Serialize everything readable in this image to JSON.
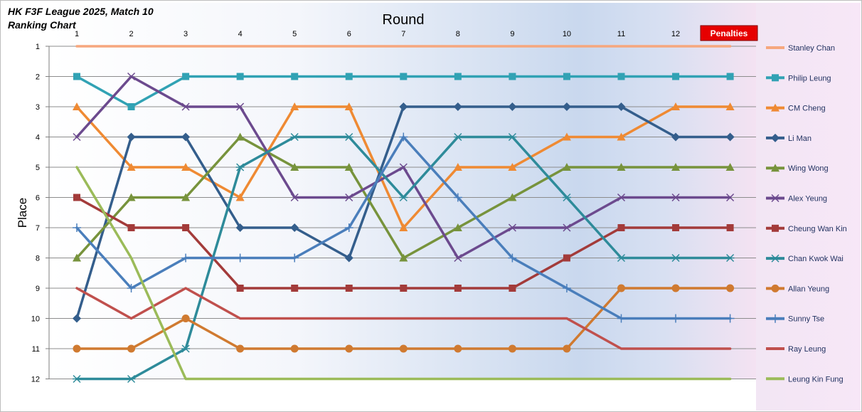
{
  "chart_data": {
    "type": "line",
    "title": "HK F3F League 2025, Match 10",
    "subtitle": "Ranking Chart",
    "xlabel": "Round",
    "ylabel": "Place",
    "x": [
      1,
      2,
      3,
      4,
      5,
      6,
      7,
      8,
      9,
      10,
      11,
      12,
      13
    ],
    "x_tick_labels": [
      "1",
      "2",
      "3",
      "4",
      "5",
      "6",
      "7",
      "8",
      "9",
      "10",
      "11",
      "12"
    ],
    "final_column_label": "Penalties",
    "y_tick_labels": [
      "1",
      "2",
      "3",
      "4",
      "5",
      "6",
      "7",
      "8",
      "9",
      "10",
      "11",
      "12"
    ],
    "ylim": [
      1,
      12
    ],
    "y_reversed": true,
    "grid": "horizontal",
    "legend_position": "right",
    "series": [
      {
        "name": "Stanley Chan",
        "color": "#f6a77e",
        "marker": "none",
        "values": [
          1,
          1,
          1,
          1,
          1,
          1,
          1,
          1,
          1,
          1,
          1,
          1,
          1
        ]
      },
      {
        "name": "Philip Leung",
        "color": "#31a2b4",
        "marker": "square",
        "values": [
          2,
          3,
          2,
          2,
          2,
          2,
          2,
          2,
          2,
          2,
          2,
          2,
          2
        ]
      },
      {
        "name": "CM Cheng",
        "color": "#ef8a33",
        "marker": "triangle",
        "values": [
          3,
          5,
          5,
          6,
          3,
          3,
          7,
          5,
          5,
          4,
          4,
          3,
          3
        ]
      },
      {
        "name": "Li Man",
        "color": "#345e8c",
        "marker": "diamond",
        "values": [
          10,
          4,
          4,
          7,
          7,
          8,
          3,
          3,
          3,
          3,
          3,
          4,
          4
        ]
      },
      {
        "name": "Wing Wong",
        "color": "#77933c",
        "marker": "triangle",
        "values": [
          8,
          6,
          6,
          4,
          5,
          5,
          8,
          7,
          6,
          5,
          5,
          5,
          5
        ]
      },
      {
        "name": "Alex Yeung",
        "color": "#6c4a8e",
        "marker": "x",
        "values": [
          4,
          2,
          3,
          3,
          6,
          6,
          5,
          8,
          7,
          7,
          6,
          6,
          6
        ]
      },
      {
        "name": "Cheung Wan Kin",
        "color": "#a33b3a",
        "marker": "square",
        "values": [
          6,
          7,
          7,
          9,
          9,
          9,
          9,
          9,
          9,
          8,
          7,
          7,
          7
        ]
      },
      {
        "name": "Chan Kwok Wai",
        "color": "#2e8b9a",
        "marker": "star",
        "values": [
          12,
          12,
          11,
          5,
          4,
          4,
          6,
          4,
          4,
          6,
          8,
          8,
          8
        ]
      },
      {
        "name": "Allan Yeung",
        "color": "#d07a30",
        "marker": "circle",
        "values": [
          11,
          11,
          10,
          11,
          11,
          11,
          11,
          11,
          11,
          11,
          9,
          9,
          9
        ]
      },
      {
        "name": "Sunny Tse",
        "color": "#4a7ebb",
        "marker": "plus",
        "values": [
          7,
          9,
          8,
          8,
          8,
          7,
          4,
          6,
          8,
          9,
          10,
          10,
          10
        ]
      },
      {
        "name": "Ray Leung",
        "color": "#c0504d",
        "marker": "none",
        "values": [
          9,
          10,
          9,
          10,
          10,
          10,
          10,
          10,
          10,
          10,
          11,
          11,
          11
        ]
      },
      {
        "name": "Leung Kin Fung",
        "color": "#9bbb59",
        "marker": "none",
        "values": [
          5,
          8,
          12,
          12,
          12,
          12,
          12,
          12,
          12,
          12,
          12,
          12,
          12
        ]
      }
    ]
  }
}
